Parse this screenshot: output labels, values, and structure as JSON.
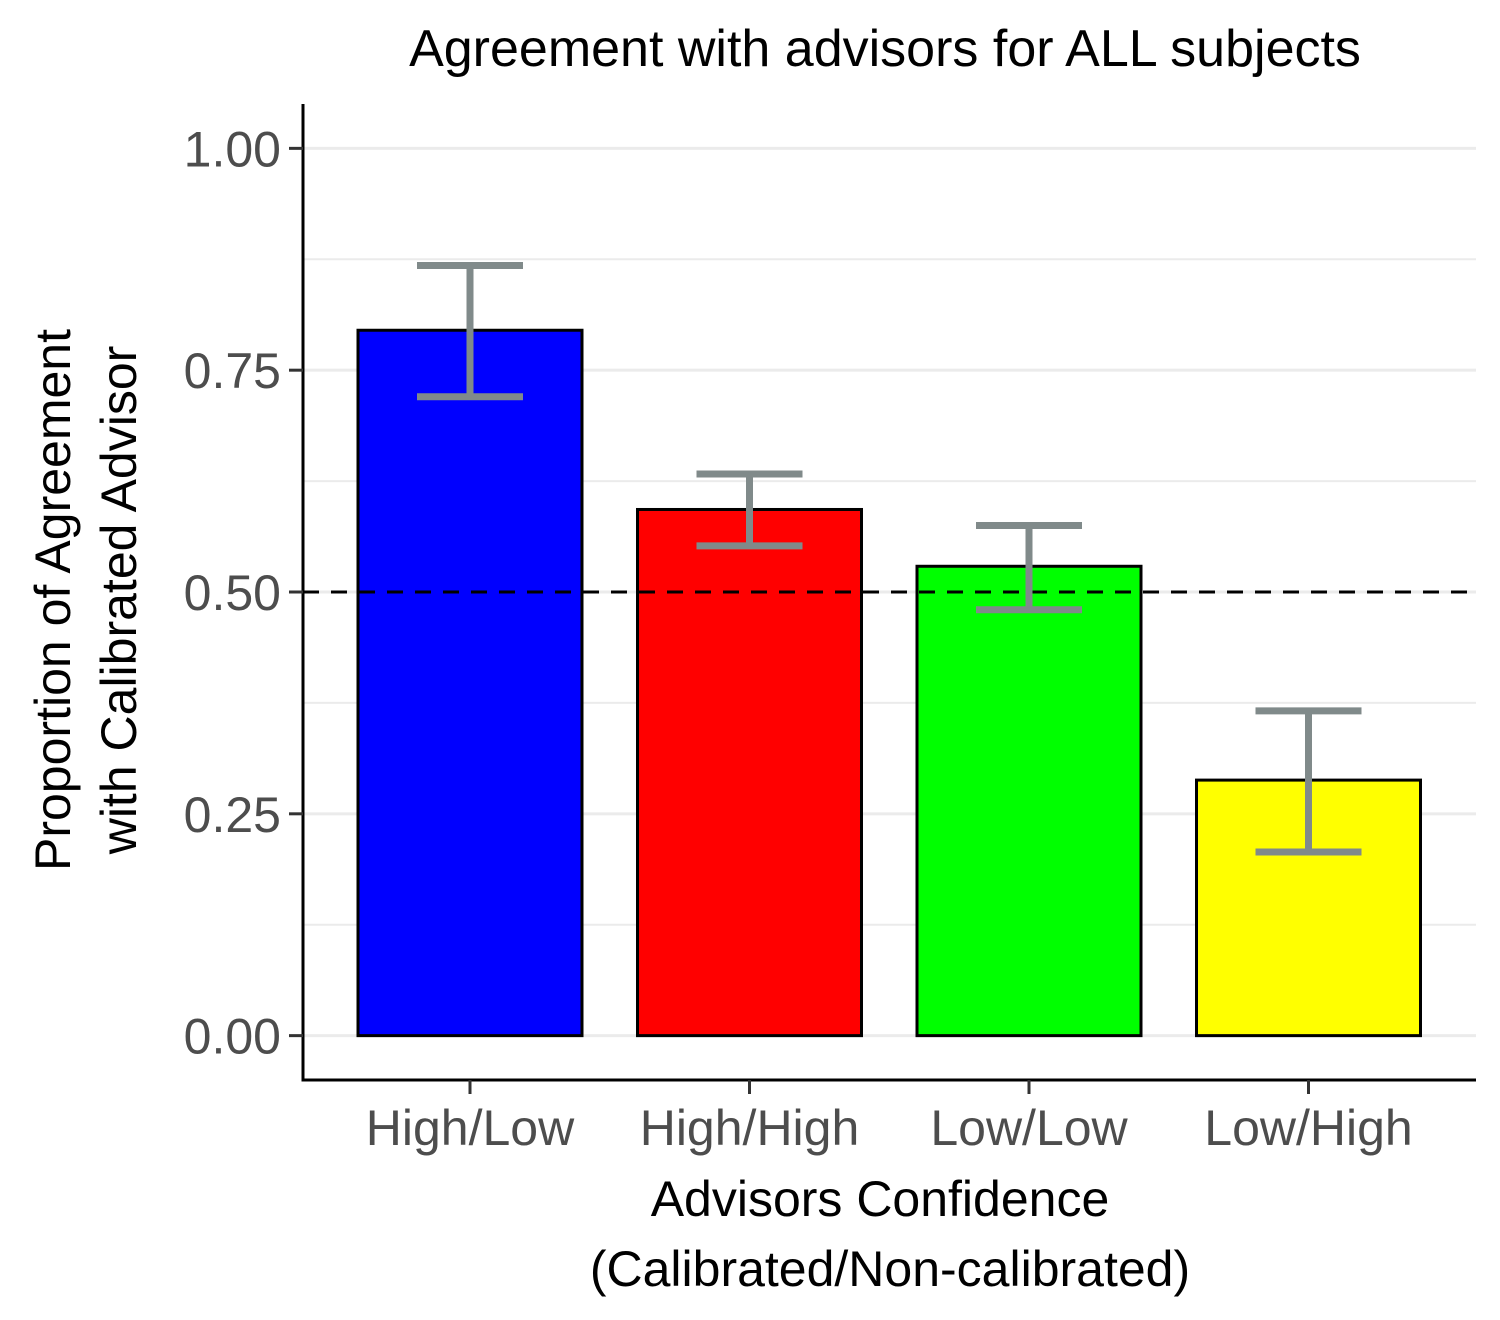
{
  "chart_data": {
    "type": "bar",
    "title": "Agreement with advisors for ALL subjects",
    "xlabel_lines": [
      "Advisors Confidence",
      "(Calibrated/Non-calibrated)"
    ],
    "ylabel_lines": [
      "Proportion of Agreement",
      "with Calibrated Advisor"
    ],
    "categories": [
      "High/Low",
      "High/High",
      "Low/Low",
      "Low/High"
    ],
    "values": [
      0.795,
      0.593,
      0.529,
      0.288
    ],
    "error_low": [
      0.72,
      0.552,
      0.48,
      0.207
    ],
    "error_high": [
      0.868,
      0.633,
      0.575,
      0.366
    ],
    "bar_colors": [
      "#0000ff",
      "#ff0000",
      "#00ff00",
      "#ffff00"
    ],
    "error_bar_color": "#808a8a",
    "ylim": [
      -0.05,
      1.05
    ],
    "y_ticks": [
      "0.00",
      "0.25",
      "0.50",
      "0.75",
      "1.00"
    ],
    "y_tick_values": [
      0,
      0.25,
      0.5,
      0.75,
      1.0
    ],
    "reference_line": 0.5,
    "grid": true,
    "legend": "none"
  }
}
